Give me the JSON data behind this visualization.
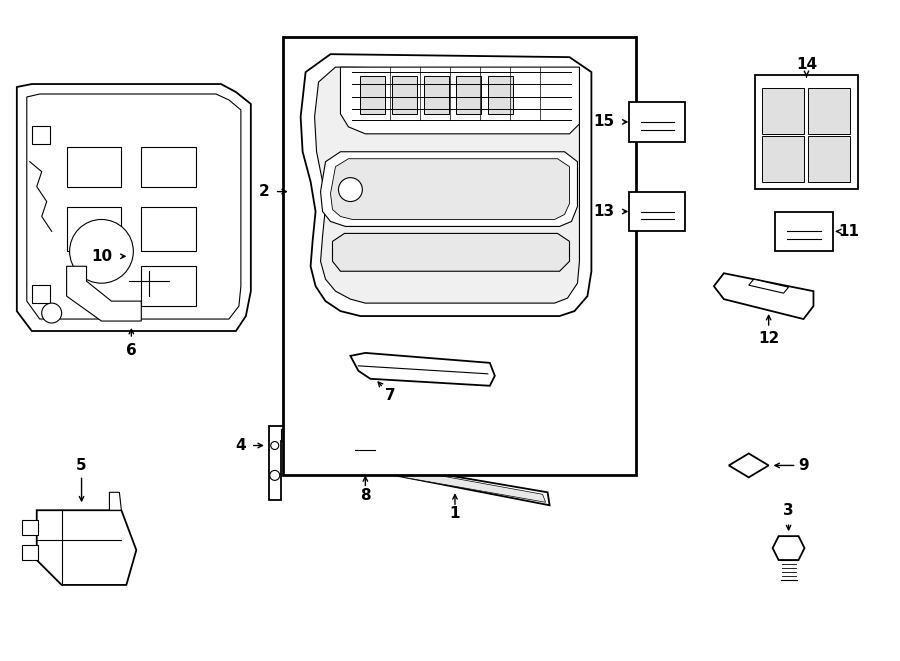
{
  "background_color": "#ffffff",
  "line_color": "#000000",
  "figure_width": 9.0,
  "figure_height": 6.61,
  "dpi": 100
}
